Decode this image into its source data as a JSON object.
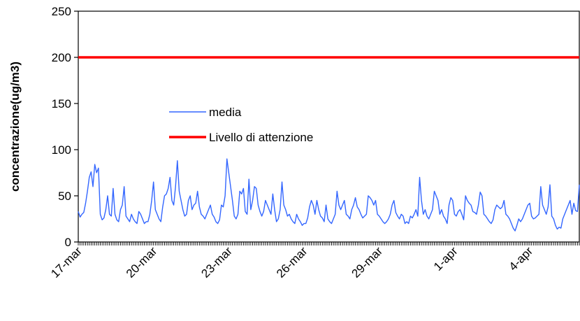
{
  "chart_data": {
    "type": "line",
    "ylabel": "concentrazione(ug/m3)",
    "ylim": [
      0,
      250
    ],
    "yticks": [
      "0",
      "50",
      "100",
      "150",
      "200",
      "250"
    ],
    "xticks": [
      "17-mar",
      "20-mar",
      "23-mar",
      "26-mar",
      "29-mar",
      "1-apr",
      "4-apr"
    ],
    "x_days": 20,
    "grid": false,
    "legend_position": "center-left",
    "series": [
      {
        "name": "media",
        "color": "#3366ff",
        "values": [
          33,
          27,
          30,
          32,
          42,
          55,
          70,
          76,
          60,
          84,
          75,
          80,
          30,
          24,
          26,
          35,
          50,
          30,
          28,
          58,
          30,
          24,
          22,
          35,
          40,
          60,
          28,
          25,
          22,
          30,
          25,
          22,
          20,
          33,
          30,
          25,
          20,
          22,
          22,
          30,
          45,
          65,
          35,
          30,
          25,
          22,
          38,
          50,
          52,
          58,
          70,
          45,
          40,
          60,
          88,
          55,
          45,
          35,
          28,
          30,
          45,
          50,
          35,
          40,
          42,
          55,
          38,
          30,
          28,
          25,
          30,
          35,
          40,
          30,
          27,
          22,
          20,
          24,
          40,
          38,
          50,
          90,
          75,
          60,
          45,
          28,
          25,
          30,
          55,
          52,
          58,
          33,
          30,
          68,
          35,
          45,
          60,
          58,
          40,
          33,
          28,
          33,
          45,
          40,
          35,
          30,
          52,
          35,
          22,
          25,
          35,
          65,
          40,
          35,
          28,
          30,
          25,
          22,
          20,
          30,
          25,
          22,
          18,
          20,
          20,
          26,
          38,
          45,
          40,
          30,
          45,
          35,
          28,
          26,
          22,
          40,
          25,
          22,
          20,
          25,
          30,
          55,
          40,
          35,
          40,
          45,
          30,
          28,
          25,
          35,
          40,
          48,
          38,
          35,
          30,
          26,
          28,
          30,
          50,
          48,
          45,
          40,
          45,
          30,
          28,
          25,
          22,
          20,
          22,
          25,
          30,
          40,
          45,
          32,
          28,
          25,
          30,
          28,
          20,
          22,
          20,
          28,
          26,
          30,
          35,
          28,
          70,
          45,
          30,
          35,
          28,
          25,
          30,
          35,
          55,
          50,
          45,
          30,
          35,
          28,
          25,
          20,
          40,
          48,
          45,
          30,
          28,
          33,
          35,
          30,
          24,
          50,
          45,
          42,
          40,
          33,
          32,
          30,
          40,
          54,
          50,
          30,
          28,
          25,
          22,
          20,
          24,
          35,
          40,
          38,
          36,
          38,
          45,
          30,
          28,
          25,
          20,
          15,
          12,
          18,
          25,
          22,
          25,
          30,
          35,
          40,
          42,
          28,
          25,
          26,
          28,
          30,
          60,
          40,
          35,
          30,
          38,
          62,
          28,
          25,
          18,
          14,
          16,
          15,
          25,
          30,
          35,
          40,
          45,
          30,
          42,
          34,
          33,
          62
        ]
      },
      {
        "name": "Livello di attenzione",
        "color": "#ff0000",
        "values": [
          200,
          200
        ]
      }
    ]
  }
}
